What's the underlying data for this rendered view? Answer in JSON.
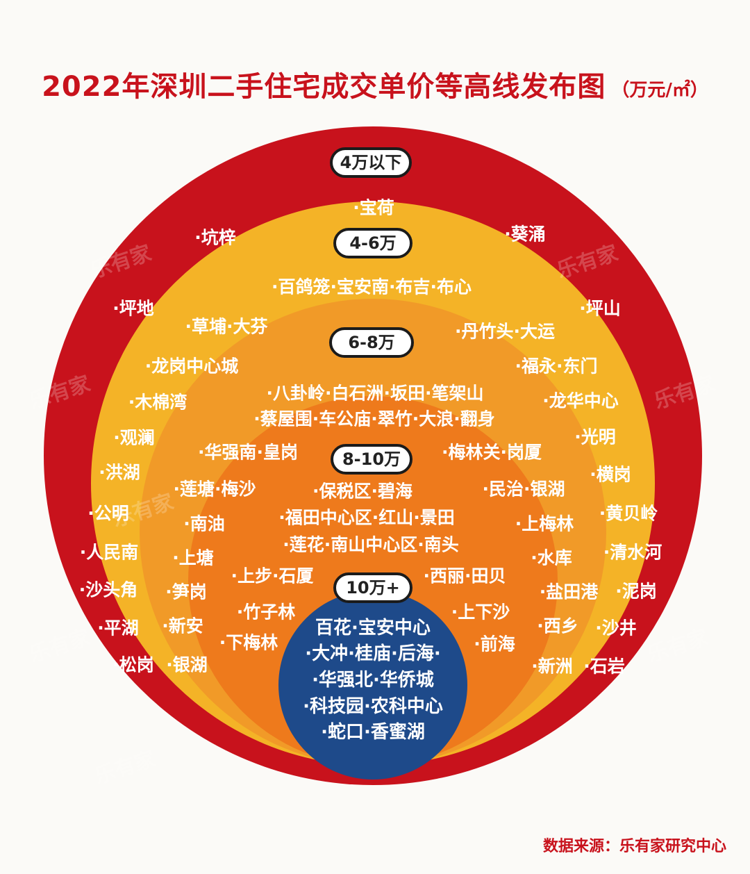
{
  "title": "2022年深圳二手住宅成交单价等高线发布图",
  "unit": "（万元/㎡）",
  "source": "数据来源：乐有家研究中心",
  "watermark_text": "乐有家",
  "colors": {
    "ring_outer": "#c8121c",
    "ring_4_6": "#f4b327",
    "ring_6_8": "#f19a28",
    "ring_8_10": "#ee7a1c",
    "core": "#1e4a8a",
    "title": "#c8121c"
  },
  "rings": [
    {
      "label": "4万以下",
      "areas": [
        "·宝荷",
        "·坑梓",
        "·葵涌",
        "·坪地",
        "·坪山"
      ]
    },
    {
      "label": "4-6万",
      "areas": [
        "·百鸽笼·宝安南·布吉·布心",
        "·草埔·大芬",
        "·丹竹头·大运",
        "·龙岗中心城",
        "·福永·东门",
        "·木棉湾",
        "·龙华中心",
        "·观澜",
        "·光明",
        "·洪湖",
        "·横岗",
        "·公明",
        "·黄贝岭",
        "·人民南",
        "·清水河",
        "·沙头角",
        "·泥岗",
        "·平湖",
        "·沙井",
        "·松岗",
        "·银湖",
        "·新洲",
        "·石岩"
      ]
    },
    {
      "label": "6-8万",
      "areas": [
        "·八卦岭·白石洲·坂田·笔架山",
        "·蔡屋围·车公庙·翠竹·大浪·翻身",
        "·华强南·皇岗",
        "·梅林关·岗厦",
        "·莲塘·梅沙",
        "·民治·银湖",
        "·南油",
        "·上梅林",
        "·上塘",
        "·水库",
        "·笋岗",
        "·盐田港",
        "·新安",
        "·西乡"
      ]
    },
    {
      "label": "8-10万",
      "areas": [
        "·保税区·碧海",
        "·福田中心区·红山·景田",
        "·莲花·南山中心区·南头",
        "·上步·石厦",
        "·西丽·田贝",
        "·竹子林",
        "·上下沙",
        "·下梅林",
        "·前海"
      ]
    },
    {
      "label": "10万+",
      "areas": [
        "百花·宝安中心",
        "·大冲·桂庙·后海·",
        "·华强北·华侨城",
        "·科技园·农科中心",
        "·蛇口·香蜜湖"
      ]
    }
  ]
}
